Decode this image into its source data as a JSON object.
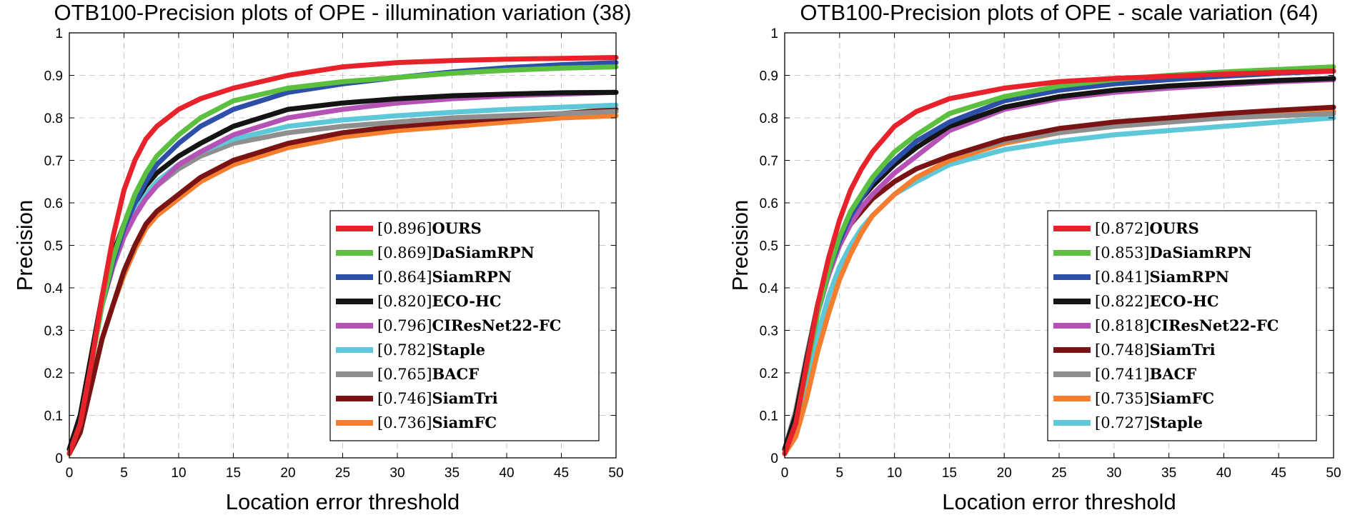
{
  "colors": {
    "OURS": "#e8222a",
    "DaSiamRPN": "#5bbf3f",
    "SiamRPN": "#2e4fa8",
    "ECO-HC": "#141414",
    "CIResNet22-FC": "#b552b5",
    "Staple": "#5ec8d8",
    "BACF": "#8f8f8f",
    "SiamTri": "#7a1414",
    "SiamFC": "#f47d2e"
  },
  "chart_data": [
    {
      "type": "line",
      "title": "OTB100-Precision plots of OPE - illumination variation (38)",
      "xlabel": "Location error threshold",
      "ylabel": "Precision",
      "xlim": [
        0,
        50
      ],
      "ylim": [
        0,
        1
      ],
      "xticks": [
        "0",
        "5",
        "10",
        "15",
        "20",
        "25",
        "30",
        "35",
        "40",
        "45",
        "50"
      ],
      "yticks": [
        "0",
        "0.1",
        "0.2",
        "0.3",
        "0.4",
        "0.5",
        "0.6",
        "0.7",
        "0.8",
        "0.9",
        "1"
      ],
      "grid": true,
      "legend_position": "bottom-right",
      "x": [
        0,
        1,
        2,
        3,
        4,
        5,
        6,
        7,
        8,
        10,
        12,
        15,
        20,
        25,
        30,
        35,
        40,
        45,
        50
      ],
      "series": [
        {
          "name": "OURS",
          "score": "[0.896]",
          "values": [
            0.01,
            0.08,
            0.22,
            0.38,
            0.52,
            0.63,
            0.7,
            0.75,
            0.78,
            0.82,
            0.845,
            0.87,
            0.9,
            0.92,
            0.93,
            0.935,
            0.938,
            0.94,
            0.942
          ]
        },
        {
          "name": "DaSiamRPN",
          "score": "[0.869]",
          "values": [
            0.01,
            0.08,
            0.22,
            0.36,
            0.47,
            0.55,
            0.62,
            0.67,
            0.71,
            0.76,
            0.8,
            0.84,
            0.87,
            0.885,
            0.895,
            0.905,
            0.912,
            0.917,
            0.92
          ]
        },
        {
          "name": "SiamRPN",
          "score": "[0.864]",
          "values": [
            0.01,
            0.08,
            0.22,
            0.36,
            0.46,
            0.54,
            0.6,
            0.65,
            0.69,
            0.74,
            0.78,
            0.82,
            0.86,
            0.88,
            0.895,
            0.908,
            0.918,
            0.925,
            0.93
          ]
        },
        {
          "name": "ECO-HC",
          "score": "[0.820]",
          "values": [
            0.02,
            0.1,
            0.24,
            0.38,
            0.48,
            0.55,
            0.6,
            0.64,
            0.67,
            0.71,
            0.74,
            0.78,
            0.82,
            0.835,
            0.845,
            0.852,
            0.856,
            0.859,
            0.86
          ]
        },
        {
          "name": "CIResNet22-FC",
          "score": "[0.796]",
          "values": [
            0.02,
            0.1,
            0.23,
            0.36,
            0.45,
            0.52,
            0.57,
            0.61,
            0.64,
            0.69,
            0.72,
            0.76,
            0.8,
            0.82,
            0.835,
            0.845,
            0.852,
            0.856,
            0.86
          ]
        },
        {
          "name": "Staple",
          "score": "[0.782]",
          "values": [
            0.02,
            0.1,
            0.23,
            0.36,
            0.46,
            0.53,
            0.58,
            0.62,
            0.65,
            0.69,
            0.72,
            0.75,
            0.78,
            0.795,
            0.805,
            0.813,
            0.82,
            0.825,
            0.83
          ]
        },
        {
          "name": "BACF",
          "score": "[0.765]",
          "values": [
            0.02,
            0.1,
            0.24,
            0.37,
            0.47,
            0.54,
            0.58,
            0.61,
            0.64,
            0.68,
            0.71,
            0.74,
            0.765,
            0.78,
            0.79,
            0.8,
            0.805,
            0.81,
            0.815
          ]
        },
        {
          "name": "SiamTri",
          "score": "[0.746]",
          "values": [
            0.01,
            0.06,
            0.17,
            0.28,
            0.36,
            0.44,
            0.5,
            0.55,
            0.58,
            0.62,
            0.66,
            0.7,
            0.74,
            0.765,
            0.78,
            0.79,
            0.8,
            0.81,
            0.82
          ]
        },
        {
          "name": "SiamFC",
          "score": "[0.736]",
          "values": [
            0.01,
            0.06,
            0.17,
            0.28,
            0.36,
            0.43,
            0.49,
            0.54,
            0.57,
            0.61,
            0.65,
            0.69,
            0.73,
            0.755,
            0.77,
            0.78,
            0.79,
            0.8,
            0.805
          ]
        }
      ]
    },
    {
      "type": "line",
      "title": "OTB100-Precision plots of OPE - scale variation (64)",
      "xlabel": "Location error threshold",
      "ylabel": "Precision",
      "xlim": [
        0,
        50
      ],
      "ylim": [
        0,
        1
      ],
      "xticks": [
        "0",
        "5",
        "10",
        "15",
        "20",
        "25",
        "30",
        "35",
        "40",
        "45",
        "50"
      ],
      "yticks": [
        "0",
        "0.1",
        "0.2",
        "0.3",
        "0.4",
        "0.5",
        "0.6",
        "0.7",
        "0.8",
        "0.9",
        "1"
      ],
      "grid": true,
      "legend_position": "bottom-right",
      "x": [
        0,
        1,
        2,
        3,
        4,
        5,
        6,
        7,
        8,
        10,
        12,
        15,
        20,
        25,
        30,
        35,
        40,
        45,
        50
      ],
      "series": [
        {
          "name": "OURS",
          "score": "[0.872]",
          "values": [
            0.01,
            0.08,
            0.22,
            0.36,
            0.47,
            0.56,
            0.63,
            0.68,
            0.72,
            0.78,
            0.815,
            0.845,
            0.87,
            0.885,
            0.893,
            0.898,
            0.903,
            0.907,
            0.91
          ]
        },
        {
          "name": "DaSiamRPN",
          "score": "[0.853]",
          "values": [
            0.01,
            0.08,
            0.21,
            0.34,
            0.44,
            0.52,
            0.58,
            0.62,
            0.66,
            0.72,
            0.76,
            0.81,
            0.85,
            0.875,
            0.89,
            0.9,
            0.908,
            0.914,
            0.92
          ]
        },
        {
          "name": "SiamRPN",
          "score": "[0.841]",
          "values": [
            0.01,
            0.08,
            0.21,
            0.34,
            0.44,
            0.51,
            0.57,
            0.61,
            0.65,
            0.7,
            0.745,
            0.79,
            0.84,
            0.865,
            0.88,
            0.89,
            0.898,
            0.905,
            0.91
          ]
        },
        {
          "name": "ECO-HC",
          "score": "[0.822]",
          "values": [
            0.02,
            0.1,
            0.23,
            0.36,
            0.46,
            0.52,
            0.57,
            0.61,
            0.64,
            0.69,
            0.73,
            0.78,
            0.825,
            0.85,
            0.865,
            0.875,
            0.882,
            0.888,
            0.893
          ]
        },
        {
          "name": "CIResNet22-FC",
          "score": "[0.818]",
          "values": [
            0.02,
            0.1,
            0.22,
            0.34,
            0.43,
            0.5,
            0.55,
            0.59,
            0.62,
            0.67,
            0.71,
            0.77,
            0.82,
            0.845,
            0.86,
            0.87,
            0.878,
            0.885,
            0.89
          ]
        },
        {
          "name": "SiamTri",
          "score": "[0.748]",
          "values": [
            0.02,
            0.1,
            0.23,
            0.35,
            0.44,
            0.5,
            0.55,
            0.58,
            0.61,
            0.65,
            0.68,
            0.71,
            0.75,
            0.775,
            0.79,
            0.8,
            0.81,
            0.818,
            0.825
          ]
        },
        {
          "name": "BACF",
          "score": "[0.741]",
          "values": [
            0.02,
            0.11,
            0.24,
            0.36,
            0.45,
            0.51,
            0.55,
            0.58,
            0.61,
            0.65,
            0.68,
            0.71,
            0.745,
            0.765,
            0.78,
            0.79,
            0.8,
            0.805,
            0.81
          ]
        },
        {
          "name": "SiamFC",
          "score": "[0.735]",
          "values": [
            0.01,
            0.05,
            0.14,
            0.25,
            0.34,
            0.42,
            0.48,
            0.53,
            0.57,
            0.62,
            0.66,
            0.7,
            0.74,
            0.765,
            0.78,
            0.79,
            0.8,
            0.81,
            0.815
          ]
        },
        {
          "name": "Staple",
          "score": "[0.727]",
          "values": [
            0.01,
            0.07,
            0.18,
            0.29,
            0.38,
            0.45,
            0.5,
            0.54,
            0.57,
            0.62,
            0.65,
            0.69,
            0.725,
            0.745,
            0.76,
            0.77,
            0.78,
            0.79,
            0.8
          ]
        }
      ]
    }
  ]
}
